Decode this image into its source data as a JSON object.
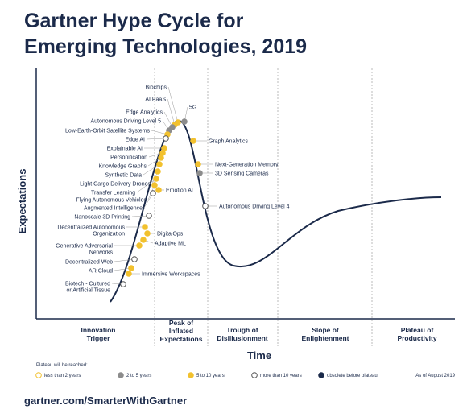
{
  "header": {
    "title_lines": [
      "Gartner Hype Cycle for",
      "Emerging Technologies, 2019"
    ]
  },
  "axes": {
    "y_label": "Expectations",
    "x_label": "Time"
  },
  "phases": [
    [
      "Innovation",
      "Trigger"
    ],
    [
      "Peak of",
      "Inflated",
      "Expectations"
    ],
    [
      "Trough of",
      "Disillusionment"
    ],
    [
      "Slope of",
      "Enlightenment"
    ],
    [
      "Plateau of",
      "Productivity"
    ]
  ],
  "nodes": [
    {
      "label": [
        "Biochips"
      ],
      "color": "#f2c12e"
    },
    {
      "label": [
        "AI PaaS"
      ],
      "color": "#f2c12e"
    },
    {
      "label": [
        "Edge Analytics"
      ],
      "color": "#8c8c8c"
    },
    {
      "label": [
        "Autonomous Driving Level 5"
      ],
      "color": "#8c8c8c"
    },
    {
      "label": [
        "Low-Earth-Orbit Satellite Systems"
      ],
      "color": "#f2c12e"
    },
    {
      "label": [
        "Edge AI"
      ],
      "color": "#ffffff"
    },
    {
      "label": [
        "Explainable AI"
      ],
      "color": "#f2c12e"
    },
    {
      "label": [
        "Personification"
      ],
      "color": "#f2c12e"
    },
    {
      "label": [
        "Knowledge Graphs"
      ],
      "color": "#f2c12e"
    },
    {
      "label": [
        "Synthetic Data"
      ],
      "color": "#f2c12e"
    },
    {
      "label": [
        "Light Cargo Delivery Drones"
      ],
      "color": "#f2c12e"
    },
    {
      "label": [
        "Transfer Learning"
      ],
      "color": "#f2c12e"
    },
    {
      "label": [
        "Flying Autonomous Vehicles"
      ],
      "color": "#f2c12e"
    },
    {
      "label": [
        "Augmented Intelligence"
      ],
      "color": "#ffffff"
    },
    {
      "label": [
        "Nanoscale 3D Printing"
      ],
      "color": "#ffffff"
    },
    {
      "label": [
        "Decentralized Autonomous",
        "Organization"
      ],
      "color": "#f2c12e"
    },
    {
      "label": [
        "Generative Adversarial",
        "Networks"
      ],
      "color": "#f2c12e"
    },
    {
      "label": [
        "Decentralized Web"
      ],
      "color": "#ffffff"
    },
    {
      "label": [
        "AR Cloud"
      ],
      "color": "#f2c12e"
    },
    {
      "label": [
        "Biotech - Cultured",
        "or Artificial Tissue"
      ],
      "color": "#ffffff"
    },
    {
      "label": [
        "5G"
      ],
      "color": "#8c8c8c"
    },
    {
      "label": [
        "Graph Analytics"
      ],
      "color": "#f2c12e"
    },
    {
      "label": [
        "Next-Generation Memory"
      ],
      "color": "#f2c12e"
    },
    {
      "label": [
        "3D Sensing Cameras"
      ],
      "color": "#8c8c8c"
    },
    {
      "label": [
        "Autonomous Driving Level 4"
      ],
      "color": "#ffffff"
    },
    {
      "label": [
        "Emotion AI"
      ],
      "color": "#f2c12e"
    },
    {
      "label": [
        "DigitalOps"
      ],
      "color": "#f2c12e"
    },
    {
      "label": [
        "Adaptive ML"
      ],
      "color": "#f2c12e"
    },
    {
      "label": [
        "Immersive Workspaces"
      ],
      "color": "#f2c12e"
    }
  ],
  "legend": {
    "title": "Plateau will be reached:",
    "entries": [
      {
        "label": "less than 2 years",
        "color": "#ffffff",
        "stroke": "#f2c12e"
      },
      {
        "label": "2 to 5 years",
        "color": "#8c8c8c",
        "stroke": "#8c8c8c"
      },
      {
        "label": "5 to 10 years",
        "color": "#f2c12e",
        "stroke": "#f2c12e"
      },
      {
        "label": "more than 10 years",
        "color": "#ffffff",
        "stroke": "#555555"
      },
      {
        "label": "obsolete before plateau",
        "color": "#1b2a4a",
        "stroke": "#1b2a4a"
      }
    ],
    "note": "As of August 2019"
  },
  "footer": {
    "url": "gartner.com/SmarterWithGartner"
  }
}
